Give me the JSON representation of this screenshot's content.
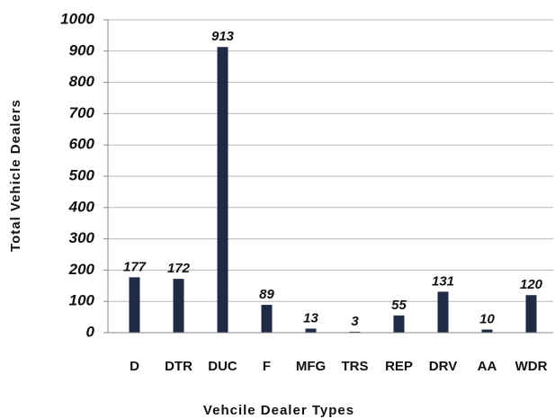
{
  "chart_data": {
    "type": "bar",
    "x_label": "Vehcile Dealer Types",
    "y_label": "Total Vehicle Dealers",
    "categories": [
      "D",
      "DTR",
      "DUC",
      "F",
      "MFG",
      "TRS",
      "REP",
      "DRV",
      "AA",
      "WDR"
    ],
    "values": [
      177,
      172,
      913,
      89,
      13,
      3,
      55,
      131,
      10,
      120
    ],
    "color": "#1f2b45",
    "ylim": [
      0,
      1000
    ],
    "yticks": [
      0,
      100,
      200,
      300,
      400,
      500,
      600,
      700,
      800,
      900,
      1000
    ],
    "grid": true
  }
}
